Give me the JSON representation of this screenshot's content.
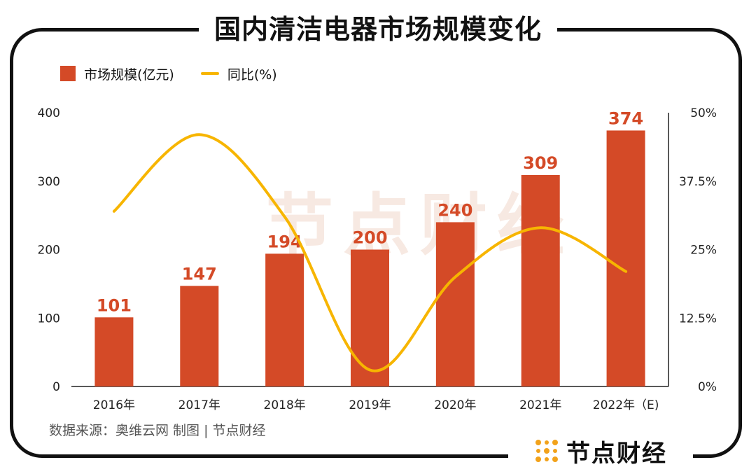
{
  "header": {
    "title": "国内清洁电器市场规模变化"
  },
  "legend": {
    "bar_label": "市场规模(亿元)",
    "line_label": "同比(%)"
  },
  "footer": {
    "source": "数据来源：奥维云网    制图 | 节点财经"
  },
  "brand": {
    "name": "节点财经",
    "icon": "node-dots-logo"
  },
  "watermark": {
    "text": "节点财经"
  },
  "colors": {
    "bar": "#D44A27",
    "line": "#F7B500",
    "axis": "#222222",
    "label": "#D44A27"
  },
  "chart_data": {
    "type": "bar",
    "categories": [
      "2016年",
      "2017年",
      "2018年",
      "2019年",
      "2020年",
      "2021年",
      "2022年（E)"
    ],
    "series": [
      {
        "name": "市场规模(亿元)",
        "type": "bar",
        "axis": "left",
        "values": [
          101,
          147,
          194,
          200,
          240,
          309,
          374
        ]
      },
      {
        "name": "同比(%)",
        "type": "line",
        "axis": "right",
        "values": [
          32,
          46,
          31,
          3,
          20,
          29,
          21
        ]
      }
    ],
    "ylim_left": [
      0,
      400
    ],
    "yticks_left": [
      "0",
      "100",
      "200",
      "300",
      "400"
    ],
    "ylim_right": [
      0,
      50
    ],
    "yticks_right": [
      "0%",
      "12.5%",
      "25%",
      "37.5%",
      "50%"
    ],
    "grid": false,
    "legend_position": "top-left"
  }
}
